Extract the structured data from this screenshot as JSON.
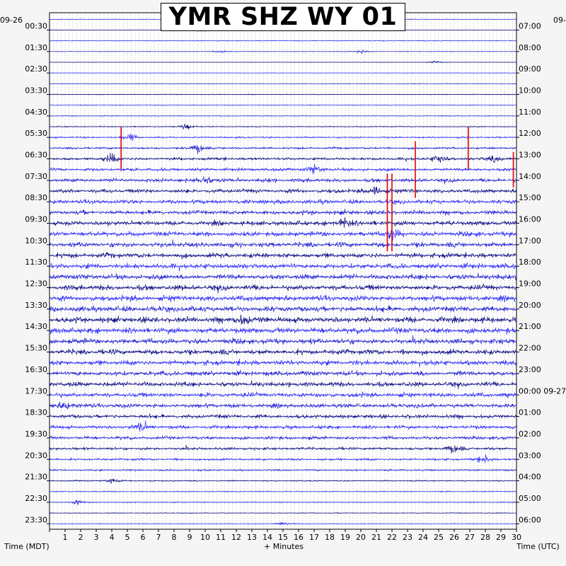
{
  "title": "YMR SHZ WY 01",
  "left_date": "09-26",
  "right_date": "09-",
  "xlabel": "+ Minutes",
  "left_axis_label": "Time (MDT)",
  "right_axis_label": "Time (UTC)",
  "colors": {
    "trace_a": "#1f1fd6",
    "trace_b": "#0b0b80",
    "trace_c": "#2a2aff",
    "clip": "#dd0000",
    "frame": "#000000",
    "plot_bg": "#ffffff"
  },
  "chart_data": {
    "type": "line",
    "title": "YMR SHZ WY 01",
    "xlabel": "+ Minutes",
    "xlim": [
      0,
      30
    ],
    "x_ticks": [
      "1",
      "2",
      "3",
      "4",
      "5",
      "6",
      "7",
      "8",
      "9",
      "10",
      "11",
      "12",
      "13",
      "14",
      "15",
      "16",
      "17",
      "18",
      "19",
      "20",
      "21",
      "22",
      "23",
      "24",
      "25",
      "26",
      "27",
      "28",
      "29",
      "30"
    ],
    "left_ticks": [
      "00:30",
      "01:30",
      "02:30",
      "03:30",
      "04:30",
      "05:30",
      "06:30",
      "07:30",
      "08:30",
      "09:30",
      "10:30",
      "11:30",
      "12:30",
      "13:30",
      "14:30",
      "15:30",
      "16:30",
      "17:30",
      "18:30",
      "19:30",
      "20:30",
      "21:30",
      "22:30",
      "23:30"
    ],
    "right_ticks": [
      "07:00",
      "08:00",
      "09:00",
      "10:00",
      "11:00",
      "12:00",
      "13:00",
      "14:00",
      "15:00",
      "16:00",
      "17:00",
      "18:00",
      "19:00",
      "20:00",
      "21:00",
      "22:00",
      "23:00",
      "00:00 09-27",
      "01:00",
      "02:00",
      "03:00",
      "04:00",
      "05:00",
      "06:00"
    ],
    "trace_count": 48,
    "trace_minutes": 30,
    "amplitude_profile": [
      0.6,
      0.5,
      0.9,
      0.6,
      0.4,
      0.5,
      0.6,
      0.8,
      0.7,
      0.8,
      1.0,
      1.6,
      2.2,
      2.8,
      3.3,
      3.8,
      4.0,
      4.3,
      4.4,
      4.8,
      4.9,
      5.0,
      5.0,
      5.2,
      5.3,
      5.4,
      5.6,
      5.8,
      5.8,
      5.8,
      5.5,
      5.2,
      5.0,
      4.9,
      4.8,
      4.6,
      4.4,
      4.0,
      3.6,
      3.4,
      3.0,
      2.4,
      1.8,
      1.4,
      1.1,
      0.9,
      0.8,
      0.7
    ],
    "bursts": [
      {
        "trace": 1,
        "minute": 9.8,
        "amp": 9
      },
      {
        "trace": 3,
        "minute": 20.0,
        "amp": 6
      },
      {
        "trace": 3,
        "minute": 11.0,
        "amp": 4
      },
      {
        "trace": 4,
        "minute": 24.8,
        "amp": 4
      },
      {
        "trace": 10,
        "minute": 8.8,
        "amp": 10
      },
      {
        "trace": 11,
        "minute": 5.2,
        "amp": 9
      },
      {
        "trace": 12,
        "minute": 9.6,
        "amp": 12
      },
      {
        "trace": 13,
        "minute": 4.0,
        "amp": 12
      },
      {
        "trace": 13,
        "minute": 25.0,
        "amp": 10
      },
      {
        "trace": 13,
        "minute": 28.6,
        "amp": 9
      },
      {
        "trace": 14,
        "minute": 17.0,
        "amp": 10
      },
      {
        "trace": 15,
        "minute": 10.0,
        "amp": 12
      },
      {
        "trace": 16,
        "minute": 21.0,
        "amp": 12
      },
      {
        "trace": 19,
        "minute": 19.0,
        "amp": 12
      },
      {
        "trace": 20,
        "minute": 22.0,
        "amp": 14
      },
      {
        "trace": 28,
        "minute": 12.5,
        "amp": 14
      },
      {
        "trace": 36,
        "minute": 1.0,
        "amp": 10
      },
      {
        "trace": 38,
        "minute": 6.0,
        "amp": 12
      },
      {
        "trace": 40,
        "minute": 26.0,
        "amp": 10
      },
      {
        "trace": 41,
        "minute": 28.0,
        "amp": 9
      },
      {
        "trace": 43,
        "minute": 4.0,
        "amp": 6
      },
      {
        "trace": 45,
        "minute": 1.8,
        "amp": 6
      },
      {
        "trace": 47,
        "minute": 15.0,
        "amp": 5
      }
    ],
    "clipped_spikes": [
      {
        "trace": 12,
        "minute": 4.6,
        "length": 60
      },
      {
        "trace": 12,
        "minute": 26.9,
        "length": 60
      },
      {
        "trace": 14,
        "minute": 23.5,
        "length": 80
      },
      {
        "trace": 14,
        "minute": 29.8,
        "length": 50
      },
      {
        "trace": 18,
        "minute": 21.7,
        "length": 110
      },
      {
        "trace": 18,
        "minute": 22.0,
        "length": 110
      }
    ]
  }
}
